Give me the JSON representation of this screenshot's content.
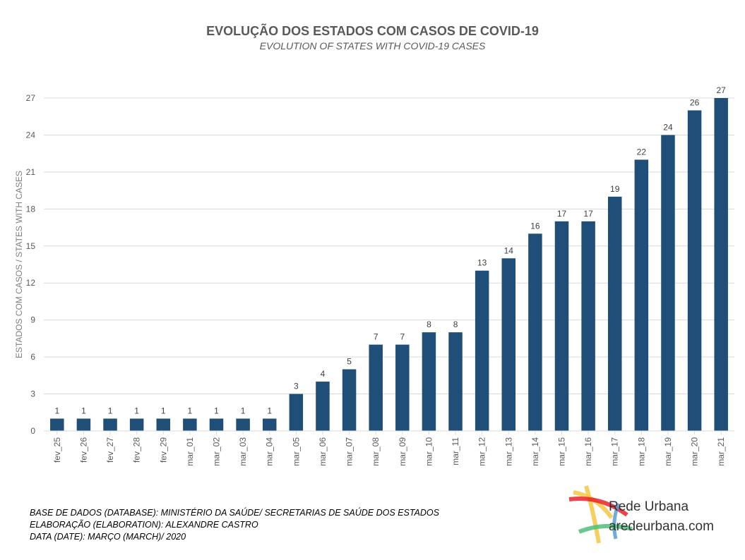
{
  "chart_data": {
    "type": "bar",
    "title": "EVOLUÇÃO  DOS ESTADOS COM CASOS DE COVID-19",
    "subtitle": "EVOLUTION OF STATES WITH COVID-19 CASES",
    "xlabel": "",
    "ylabel": "ESTADOS COM CASOS / STATES WITH CASES",
    "ylim": [
      0,
      27
    ],
    "yticks": [
      0,
      3,
      6,
      9,
      12,
      15,
      18,
      21,
      24,
      27
    ],
    "grid": true,
    "bar_color": "#1F4E79",
    "categories": [
      "fev_25",
      "fev_26",
      "fev_27",
      "fev_28",
      "fev_29",
      "mar_01",
      "mar_02",
      "mar_03",
      "mar_04",
      "mar_05",
      "mar_06",
      "mar_07",
      "mar_08",
      "mar_09",
      "mar_10",
      "mar_11",
      "mar_12",
      "mar_13",
      "mar_14",
      "mar_15",
      "mar_16",
      "mar_17",
      "mar_18",
      "mar_19",
      "mar_20",
      "mar_21"
    ],
    "values": [
      1,
      1,
      1,
      1,
      1,
      1,
      1,
      1,
      1,
      3,
      4,
      5,
      7,
      7,
      8,
      8,
      13,
      14,
      16,
      17,
      17,
      19,
      22,
      24,
      26,
      27
    ]
  },
  "footer": {
    "line1": "BASE DE DADOS (DATABASE): MINISTÉRIO  DA SAÚDE/ SECRETARIAS DE SAÚDE DOS ESTADOS",
    "line2": "ELABORAÇÃO (ELABORATION):  ALEXANDRE  CASTRO",
    "line3": "DATA (DATE):  MARÇO  (MARCH)/  2020"
  },
  "logo": {
    "name": "Rede Urbana",
    "url": "aredeurbana.com"
  }
}
